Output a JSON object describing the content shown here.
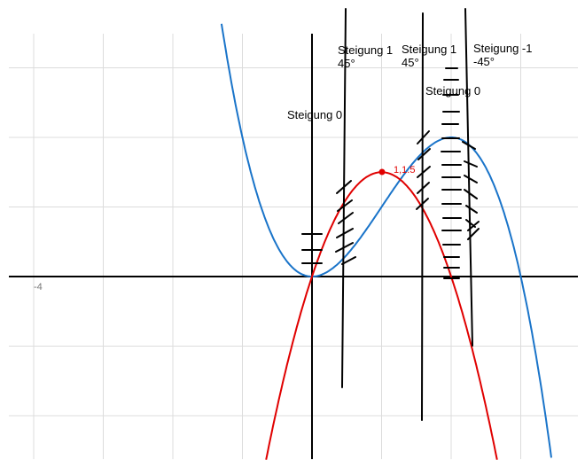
{
  "annotations": [
    {
      "line1": "Steigung 1",
      "line2": "45°"
    },
    {
      "line1": "Steigung 1",
      "line2": "45°"
    },
    {
      "line1": "Steigung -1",
      "line2": "-45°"
    },
    {
      "line1": "Steigung 0"
    },
    {
      "line1": "Steigung 0"
    }
  ],
  "axis_label": "-4",
  "point_label": "1,1.5"
}
